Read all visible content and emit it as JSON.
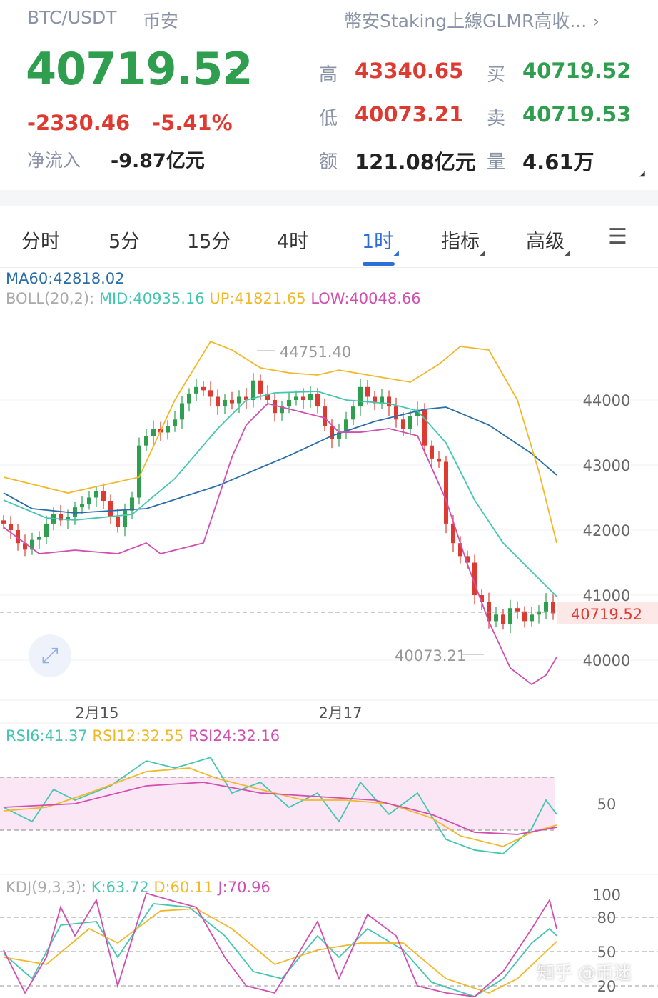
{
  "header": {
    "pair": "BTC/USDT",
    "exchange": "币安",
    "news": "幣安Staking上線GLMR高收...",
    "price": "40719.52",
    "change": "-2330.46",
    "change_pct": "-5.41%",
    "netflow_label": "净流入",
    "netflow": "-9.87亿元",
    "stats": [
      {
        "label": "高",
        "value": "43340.65",
        "color": "red"
      },
      {
        "label": "买",
        "value": "40719.52",
        "color": "green"
      },
      {
        "label": "低",
        "value": "40073.21",
        "color": "red"
      },
      {
        "label": "卖",
        "value": "40719.53",
        "color": "green"
      },
      {
        "label": "额",
        "value": "121.08亿元",
        "color": "dark"
      },
      {
        "label": "量",
        "value": "4.61万",
        "color": "dark"
      }
    ]
  },
  "tabs": [
    {
      "label": "分时"
    },
    {
      "label": "5分"
    },
    {
      "label": "15分"
    },
    {
      "label": "4时"
    },
    {
      "label": "1时",
      "active": true,
      "dropdown": true
    },
    {
      "label": "指标",
      "dropdown": true
    },
    {
      "label": "高级",
      "dropdown": true
    }
  ],
  "indicators": {
    "ma60": "MA60:42818.02",
    "boll_label": "BOLL(20,2):",
    "boll_mid": "MID:40935.16",
    "boll_up": "UP:41821.65",
    "boll_low": "LOW:40048.66",
    "rsi6": "RSI6:41.37",
    "rsi12": "RSI12:32.55",
    "rsi24": "RSI24:32.16",
    "kdj_label": "KDJ(9,3,3):",
    "kdj_k": "K:63.72",
    "kdj_d": "D:60.11",
    "kdj_j": "J:70.96"
  },
  "colors": {
    "up": "#2f9e4f",
    "down": "#dd3b32",
    "ma60": "#2a6ea8",
    "mid": "#45c6b0",
    "upper": "#f0b92a",
    "lower": "#d04fb0",
    "accent": "#2d6fd6"
  },
  "chart_data": [
    {
      "type": "candlestick",
      "title": "",
      "y_ticks": [
        "44000",
        "43000",
        "42000",
        "41000",
        "40000"
      ],
      "ylim": [
        39500,
        45000
      ],
      "x_labels": [
        "2月15",
        "2月17"
      ],
      "last_price_label": "40719.52",
      "max_label": "44751.40",
      "min_label": "40073.21",
      "closes": [
        42100,
        42000,
        41800,
        41700,
        41850,
        41900,
        42100,
        42250,
        42150,
        42200,
        42350,
        42400,
        42500,
        42600,
        42450,
        42200,
        42050,
        42300,
        42500,
        43300,
        43450,
        43550,
        43500,
        43600,
        43700,
        43950,
        44100,
        44200,
        44150,
        44050,
        43900,
        44000,
        43950,
        44050,
        44000,
        44300,
        44100,
        44000,
        43800,
        43900,
        44000,
        44050,
        44000,
        44100,
        43900,
        43600,
        43400,
        43500,
        43700,
        43900,
        44200,
        44050,
        43950,
        44050,
        43900,
        43700,
        43550,
        43750,
        43850,
        43300,
        43100,
        43050,
        42100,
        41800,
        41600,
        41500,
        41000,
        40900,
        40600,
        40700,
        40550,
        40800,
        40750,
        40600,
        40700,
        40750,
        40900,
        40720
      ],
      "series": [
        {
          "name": "MA60",
          "points": [
            [
              0,
              42571
            ],
            [
              4,
              42330
            ],
            [
              10,
              42264
            ],
            [
              20,
              42330
            ],
            [
              30,
              42681
            ],
            [
              40,
              43143
            ],
            [
              46,
              43450
            ],
            [
              52,
              43670
            ],
            [
              59,
              43857
            ],
            [
              62,
              43890
            ],
            [
              68,
              43615
            ],
            [
              74,
              43176
            ],
            [
              77.5,
              42846
            ]
          ]
        },
        {
          "name": "MID",
          "points": [
            [
              0,
              42462
            ],
            [
              6,
              42187
            ],
            [
              10,
              42154
            ],
            [
              18,
              42242
            ],
            [
              24,
              42791
            ],
            [
              30,
              43560
            ],
            [
              34,
              44000
            ],
            [
              38,
              44110
            ],
            [
              44,
              44132
            ],
            [
              48,
              44000
            ],
            [
              54,
              43945
            ],
            [
              58,
              43835
            ],
            [
              62,
              43340
            ],
            [
              66,
              42462
            ],
            [
              70,
              41802
            ],
            [
              74,
              41362
            ],
            [
              77.5,
              40978
            ]
          ]
        },
        {
          "name": "UP",
          "points": [
            [
              0,
              42813
            ],
            [
              9,
              42571
            ],
            [
              19,
              42813
            ],
            [
              24,
              44000
            ],
            [
              29,
              44900
            ],
            [
              32,
              44770
            ],
            [
              36,
              44494
            ],
            [
              40,
              44418
            ],
            [
              44,
              44385
            ],
            [
              47,
              44460
            ],
            [
              51,
              44385
            ],
            [
              57,
              44275
            ],
            [
              61,
              44550
            ],
            [
              64,
              44824
            ],
            [
              68,
              44769
            ],
            [
              72,
              44000
            ],
            [
              75,
              42901
            ],
            [
              77.5,
              41802
            ]
          ]
        },
        {
          "name": "LOW",
          "points": [
            [
              0,
              42044
            ],
            [
              5,
              41637
            ],
            [
              10,
              41692
            ],
            [
              16,
              41637
            ],
            [
              20,
              41802
            ],
            [
              22,
              41637
            ],
            [
              28,
              41802
            ],
            [
              30,
              42462
            ],
            [
              32,
              43121
            ],
            [
              34,
              43615
            ],
            [
              37,
              43945
            ],
            [
              41,
              43835
            ],
            [
              45,
              43725
            ],
            [
              47,
              43505
            ],
            [
              50,
              43505
            ],
            [
              54,
              43560
            ],
            [
              58,
              43450
            ],
            [
              62,
              42462
            ],
            [
              65,
              41473
            ],
            [
              68,
              40593
            ],
            [
              71,
              39879
            ],
            [
              74,
              39626
            ],
            [
              76,
              39770
            ],
            [
              77.5,
              40044
            ]
          ]
        }
      ]
    },
    {
      "type": "line",
      "title": "RSI",
      "y_ticks": [
        "50"
      ],
      "ylim": [
        0,
        100
      ],
      "bands": [
        30,
        70
      ],
      "series": [
        {
          "name": "RSI6",
          "points": [
            [
              0,
              47.3
            ],
            [
              4,
              36.5
            ],
            [
              7,
              60.8
            ],
            [
              10,
              52.7
            ],
            [
              15,
              63.5
            ],
            [
              20,
              82.4
            ],
            [
              24,
              77
            ],
            [
              29,
              85
            ],
            [
              32,
              58.1
            ],
            [
              36,
              66.2
            ],
            [
              40,
              47.3
            ],
            [
              44,
              58.1
            ],
            [
              47,
              36.5
            ],
            [
              50,
              66.2
            ],
            [
              54,
              42
            ],
            [
              58,
              58.1
            ],
            [
              62,
              23
            ],
            [
              66,
              14.9
            ],
            [
              70,
              12.2
            ],
            [
              74,
              31.1
            ],
            [
              76,
              52.7
            ],
            [
              77.5,
              42
            ]
          ]
        },
        {
          "name": "RSI12",
          "points": [
            [
              0,
              44.6
            ],
            [
              6,
              47.3
            ],
            [
              12,
              58.1
            ],
            [
              20,
              74.3
            ],
            [
              26,
              77
            ],
            [
              30,
              68.9
            ],
            [
              36,
              60.8
            ],
            [
              42,
              52.7
            ],
            [
              48,
              52.7
            ],
            [
              54,
              50
            ],
            [
              60,
              39.2
            ],
            [
              64,
              25.7
            ],
            [
              70,
              17.6
            ],
            [
              74,
              28.4
            ],
            [
              77.5,
              33.8
            ]
          ]
        },
        {
          "name": "RSI24",
          "points": [
            [
              0,
              47.3
            ],
            [
              10,
              50
            ],
            [
              20,
              63.5
            ],
            [
              28,
              66.2
            ],
            [
              36,
              58.1
            ],
            [
              44,
              55.4
            ],
            [
              52,
              52.7
            ],
            [
              60,
              41.9
            ],
            [
              66,
              28.4
            ],
            [
              72,
              26.8
            ],
            [
              77.5,
              32.2
            ]
          ]
        }
      ]
    },
    {
      "type": "line",
      "title": "KDJ",
      "y_ticks": [
        "100",
        "80",
        "50",
        "20"
      ],
      "ylim": [
        0,
        110
      ],
      "bands": [
        20,
        50,
        80
      ],
      "series": [
        {
          "name": "K",
          "points": [
            [
              0,
              48.1
            ],
            [
              4,
              26.3
            ],
            [
              8,
              73.1
            ],
            [
              13,
              76.3
            ],
            [
              16,
              45
            ],
            [
              21,
              91.9
            ],
            [
              26,
              88.8
            ],
            [
              31,
              63.8
            ],
            [
              35,
              32.5
            ],
            [
              39,
              26.3
            ],
            [
              44,
              63.8
            ],
            [
              47,
              45
            ],
            [
              51,
              70
            ],
            [
              56,
              51.3
            ],
            [
              60,
              23.1
            ],
            [
              66,
              10.6
            ],
            [
              70,
              26.3
            ],
            [
              74,
              57.5
            ],
            [
              76.5,
              70
            ],
            [
              77.5,
              63.8
            ]
          ]
        },
        {
          "name": "D",
          "points": [
            [
              0,
              45
            ],
            [
              6,
              38.8
            ],
            [
              12,
              70
            ],
            [
              16,
              57.5
            ],
            [
              22,
              85.6
            ],
            [
              27,
              87.5
            ],
            [
              32,
              70
            ],
            [
              38,
              38.8
            ],
            [
              44,
              51.3
            ],
            [
              50,
              57.5
            ],
            [
              56,
              57.5
            ],
            [
              62,
              26.3
            ],
            [
              68,
              13.8
            ],
            [
              72,
              26.3
            ],
            [
              77.5,
              58.8
            ]
          ]
        },
        {
          "name": "J",
          "points": [
            [
              0,
              51.3
            ],
            [
              3,
              13.8
            ],
            [
              6,
              45
            ],
            [
              8,
              88.8
            ],
            [
              10,
              63.8
            ],
            [
              13,
              95
            ],
            [
              16,
              20
            ],
            [
              20,
              101
            ],
            [
              24,
              93.8
            ],
            [
              27,
              88.8
            ],
            [
              31,
              45
            ],
            [
              34,
              20
            ],
            [
              38,
              13.8
            ],
            [
              41,
              45
            ],
            [
              44,
              76.3
            ],
            [
              47,
              26.3
            ],
            [
              51,
              82.5
            ],
            [
              55,
              63.8
            ],
            [
              58,
              20
            ],
            [
              62,
              13.8
            ],
            [
              66,
              10.6
            ],
            [
              70,
              32.5
            ],
            [
              74,
              70
            ],
            [
              76.5,
              95
            ],
            [
              77.5,
              70
            ]
          ]
        }
      ]
    }
  ],
  "watermark": "知乎 @币迷"
}
